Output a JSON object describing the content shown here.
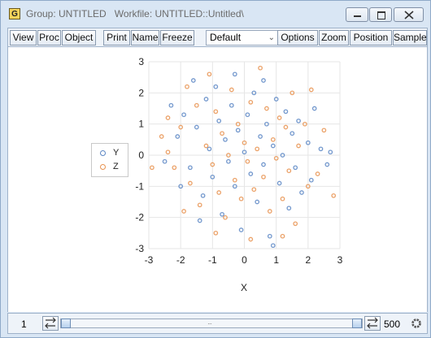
{
  "window": {
    "app_icon": "G",
    "title_part1": "Group: UNTITLED",
    "title_part2": "Workfile: UNTITLED::Untitled\\",
    "controls": [
      "minimize-icon",
      "maximize-icon",
      "close-icon"
    ]
  },
  "toolbar": {
    "buttons": [
      "View",
      "Proc",
      "Object",
      "Print",
      "Name",
      "Freeze"
    ],
    "combo_value": "Default",
    "buttons_right": [
      "Options",
      "Zoom",
      "Position",
      "Sample"
    ]
  },
  "chart_data": {
    "type": "scatter",
    "xlabel": "X",
    "ylabel": "",
    "xlim": [
      -3,
      3
    ],
    "ylim": [
      -3,
      3
    ],
    "xticks": [
      "-3",
      "-2",
      "-1",
      "0",
      "1",
      "2",
      "3"
    ],
    "yticks": [
      "3",
      "2",
      "1",
      "0",
      "-1",
      "-2",
      "-3"
    ],
    "grid": true,
    "legend": "left",
    "n_points_per_series": 500,
    "series": [
      {
        "name": "Y",
        "color": "#5b86c4",
        "points": [
          [
            -2.3,
            1.6
          ],
          [
            -2.1,
            0.6
          ],
          [
            -1.9,
            1.3
          ],
          [
            -1.7,
            -0.4
          ],
          [
            -1.6,
            2.4
          ],
          [
            -1.5,
            0.9
          ],
          [
            -1.3,
            -1.3
          ],
          [
            -1.2,
            1.8
          ],
          [
            -1.1,
            0.2
          ],
          [
            -1.0,
            -0.7
          ],
          [
            -0.9,
            2.2
          ],
          [
            -0.8,
            1.1
          ],
          [
            -0.7,
            -1.9
          ],
          [
            -0.6,
            0.5
          ],
          [
            -0.5,
            -0.2
          ],
          [
            -0.4,
            1.6
          ],
          [
            -0.3,
            -1.0
          ],
          [
            -0.2,
            0.8
          ],
          [
            -0.1,
            -2.4
          ],
          [
            0.0,
            0.1
          ],
          [
            0.1,
            1.3
          ],
          [
            0.2,
            -0.6
          ],
          [
            0.3,
            2.0
          ],
          [
            0.4,
            -1.5
          ],
          [
            0.5,
            0.6
          ],
          [
            0.6,
            -0.3
          ],
          [
            0.7,
            1.0
          ],
          [
            0.8,
            -2.6
          ],
          [
            0.9,
            0.3
          ],
          [
            1.0,
            1.8
          ],
          [
            1.1,
            -0.9
          ],
          [
            1.2,
            0.0
          ],
          [
            1.3,
            1.4
          ],
          [
            1.4,
            -1.7
          ],
          [
            1.5,
            0.7
          ],
          [
            1.6,
            -0.4
          ],
          [
            1.7,
            1.1
          ],
          [
            1.8,
            -1.2
          ],
          [
            2.0,
            0.4
          ],
          [
            2.1,
            -0.8
          ],
          [
            2.2,
            1.5
          ],
          [
            2.4,
            0.2
          ],
          [
            2.6,
            -0.3
          ],
          [
            2.7,
            0.1
          ],
          [
            -2.5,
            -0.2
          ],
          [
            -2.0,
            -1.0
          ],
          [
            -1.4,
            -2.1
          ],
          [
            0.6,
            2.4
          ],
          [
            -0.3,
            2.6
          ],
          [
            0.9,
            -2.9
          ]
        ]
      },
      {
        "name": "Z",
        "color": "#e8924f",
        "points": [
          [
            -2.6,
            0.6
          ],
          [
            -2.4,
            1.2
          ],
          [
            -2.2,
            -0.4
          ],
          [
            -2.0,
            0.9
          ],
          [
            -1.8,
            2.2
          ],
          [
            -1.7,
            -0.9
          ],
          [
            -1.5,
            1.6
          ],
          [
            -1.4,
            -1.6
          ],
          [
            -1.2,
            0.3
          ],
          [
            -1.1,
            2.6
          ],
          [
            -1.0,
            -0.3
          ],
          [
            -0.9,
            1.4
          ],
          [
            -0.8,
            -1.2
          ],
          [
            -0.7,
            0.7
          ],
          [
            -0.6,
            -2.0
          ],
          [
            -0.5,
            0.0
          ],
          [
            -0.4,
            2.1
          ],
          [
            -0.3,
            -0.8
          ],
          [
            -0.2,
            1.0
          ],
          [
            -0.1,
            -1.4
          ],
          [
            0.0,
            0.4
          ],
          [
            0.1,
            -0.2
          ],
          [
            0.2,
            1.7
          ],
          [
            0.3,
            -1.1
          ],
          [
            0.4,
            0.2
          ],
          [
            0.5,
            2.8
          ],
          [
            0.6,
            -0.7
          ],
          [
            0.7,
            1.5
          ],
          [
            0.8,
            -1.8
          ],
          [
            0.9,
            0.5
          ],
          [
            1.0,
            -0.1
          ],
          [
            1.1,
            1.2
          ],
          [
            1.2,
            -1.4
          ],
          [
            1.3,
            0.9
          ],
          [
            1.4,
            -0.5
          ],
          [
            1.5,
            2.0
          ],
          [
            1.6,
            -2.2
          ],
          [
            1.7,
            0.3
          ],
          [
            1.9,
            1.0
          ],
          [
            2.0,
            -1.0
          ],
          [
            2.1,
            2.1
          ],
          [
            2.3,
            -0.6
          ],
          [
            2.5,
            0.8
          ],
          [
            2.8,
            -1.3
          ],
          [
            -2.9,
            -0.4
          ],
          [
            -1.9,
            -1.8
          ],
          [
            -0.9,
            -2.5
          ],
          [
            0.2,
            -2.7
          ],
          [
            1.2,
            -2.6
          ],
          [
            -2.4,
            0.1
          ]
        ]
      }
    ]
  },
  "statusbar": {
    "start": "1",
    "end": "500",
    "icons": [
      "step-left-right-icon",
      "step-right-left-icon",
      "settings-gear-icon"
    ]
  }
}
